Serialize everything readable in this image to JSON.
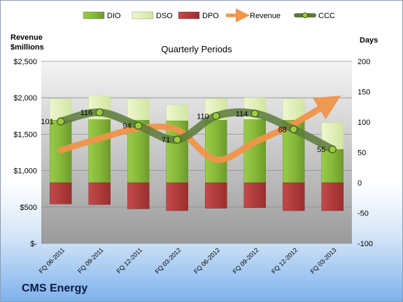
{
  "company": "CMS Energy",
  "colors": {
    "dio": "#8fbc3f",
    "dso": "#e2f0b8",
    "dpo": "#b23a3a",
    "revenue": "#f0954a",
    "ccc": "#5a7a3a"
  },
  "chart_data": {
    "type": "bar",
    "title": "Quarterly Periods",
    "y_left_label": [
      "Revenue",
      "$millions"
    ],
    "y_right_label": "Days",
    "legend": [
      "DIO",
      "DSO",
      "DPO",
      "Revenue",
      "CCC"
    ],
    "legend_position": "top",
    "grid": true,
    "y_left_lim": [
      0,
      2500
    ],
    "y_left_ticks": [
      0,
      500,
      1000,
      1500,
      2000,
      2500
    ],
    "y_left_tick_labels": [
      "$-",
      "$500",
      "$1,000",
      "$1,500",
      "$2,000",
      "$2,500"
    ],
    "y_right_lim": [
      -100,
      200
    ],
    "y_right_ticks": [
      -100,
      -50,
      0,
      50,
      100,
      150,
      200
    ],
    "categories": [
      "FQ 06-2011",
      "FQ 09-2011",
      "FQ 12-2011",
      "FQ 03-2012",
      "FQ 06-2012",
      "FQ 09-2012",
      "FQ 12-2012",
      "FQ 03-2013"
    ],
    "series": [
      {
        "name": "DIO",
        "axis": "right",
        "values": [
          103,
          104,
          103,
          102,
          103,
          104,
          103,
          55
        ]
      },
      {
        "name": "DSO",
        "axis": "right",
        "values": [
          35,
          39,
          35,
          26,
          36,
          36,
          35,
          44
        ]
      },
      {
        "name": "DPO",
        "axis": "right",
        "values": [
          -35,
          -36,
          -43,
          -46,
          -42,
          -41,
          -46,
          -46
        ]
      },
      {
        "name": "Revenue",
        "axis": "left",
        "values": [
          1280,
          1440,
          1580,
          1560,
          1150,
          1390,
          1640,
          1960
        ]
      },
      {
        "name": "CCC",
        "axis": "right",
        "values": [
          101,
          116,
          94,
          71,
          110,
          114,
          88,
          55
        ]
      }
    ],
    "ccc_labels": [
      "101",
      "116",
      "94",
      "71",
      "110",
      "114",
      "88",
      "55"
    ]
  }
}
